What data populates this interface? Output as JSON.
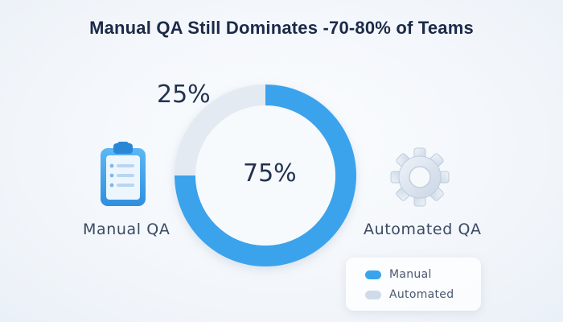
{
  "chart_data": {
    "type": "pie",
    "title": "Manual QA Still Dominates -70-80% of Teams",
    "categories": [
      "Manual",
      "Automated"
    ],
    "values": [
      75,
      25
    ],
    "value_labels": [
      "75%",
      "25%"
    ],
    "side_labels": [
      "Manual QA",
      "Automated QA"
    ],
    "legend": {
      "placement": "bottom-right",
      "entries": [
        "Manual",
        "Automated"
      ]
    }
  },
  "colors": {
    "manual": "#3aa3ec",
    "automated": "#e3eaf2",
    "title": "#1b2a48"
  },
  "icons": {
    "left": "clipboard-icon",
    "right": "gear-icon"
  }
}
